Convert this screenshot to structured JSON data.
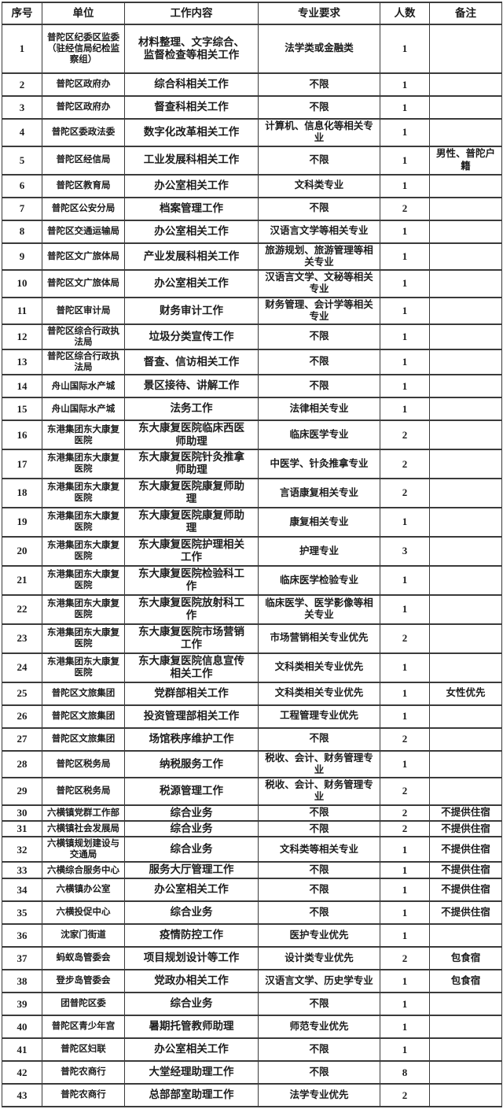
{
  "table": {
    "headers": {
      "no": "序号",
      "unit": "单位",
      "work": "工作内容",
      "req": "专业要求",
      "count": "人数",
      "note": "备注"
    },
    "rows": [
      {
        "no": "1",
        "unit": "普陀区纪委区监委（驻经信局纪检监察组）",
        "work": "材料整理、文字综合、监督检查等相关工作",
        "req": "法学类或金融类",
        "count": "1",
        "note": ""
      },
      {
        "no": "2",
        "unit": "普陀区政府办",
        "work": "综合科相关工作",
        "req": "不限",
        "count": "1",
        "note": ""
      },
      {
        "no": "3",
        "unit": "普陀区政府办",
        "work": "督查科相关工作",
        "req": "不限",
        "count": "1",
        "note": ""
      },
      {
        "no": "4",
        "unit": "普陀区委政法委",
        "work": "数字化改革相关工作",
        "req": "计算机、信息化等相关专业",
        "count": "1",
        "note": ""
      },
      {
        "no": "5",
        "unit": "普陀区经信局",
        "work": "工业发展科相关工作",
        "req": "不限",
        "count": "1",
        "note": "男性、普陀户籍"
      },
      {
        "no": "6",
        "unit": "普陀区教育局",
        "work": "办公室相关工作",
        "req": "文科类专业",
        "count": "1",
        "note": ""
      },
      {
        "no": "7",
        "unit": "普陀区公安分局",
        "work": "档案管理工作",
        "req": "不限",
        "count": "2",
        "note": ""
      },
      {
        "no": "8",
        "unit": "普陀区交通运输局",
        "work": "办公室相关工作",
        "req": "汉语言文学等相关专业",
        "count": "1",
        "note": ""
      },
      {
        "no": "9",
        "unit": "普陀区文广旅体局",
        "work": "产业发展科相关工作",
        "req": "旅游规划、旅游管理等相关专业",
        "count": "1",
        "note": ""
      },
      {
        "no": "10",
        "unit": "普陀区文广旅体局",
        "work": "办公室相关工作",
        "req": "汉语言文学、文秘等相关专业",
        "count": "1",
        "note": ""
      },
      {
        "no": "11",
        "unit": "普陀区审计局",
        "work": "财务审计工作",
        "req": "财务管理、会计学等相关专业",
        "count": "1",
        "note": ""
      },
      {
        "no": "12",
        "unit": "普陀区综合行政执法局",
        "work": "垃圾分类宣传工作",
        "req": "不限",
        "count": "1",
        "note": ""
      },
      {
        "no": "13",
        "unit": "普陀区综合行政执法局",
        "work": "督查、信访相关工作",
        "req": "不限",
        "count": "1",
        "note": ""
      },
      {
        "no": "14",
        "unit": "舟山国际水产城",
        "work": "景区接待、讲解工作",
        "req": "不限",
        "count": "1",
        "note": ""
      },
      {
        "no": "15",
        "unit": "舟山国际水产城",
        "work": "法务工作",
        "req": "法律相关专业",
        "count": "1",
        "note": ""
      },
      {
        "no": "16",
        "unit": "东港集团东大康复医院",
        "work": "东大康复医院临床西医师助理",
        "req": "临床医学专业",
        "count": "2",
        "note": ""
      },
      {
        "no": "17",
        "unit": "东港集团东大康复医院",
        "work": "东大康复医院针灸推拿师助理",
        "req": "中医学、针灸推拿专业",
        "count": "2",
        "note": ""
      },
      {
        "no": "18",
        "unit": "东港集团东大康复医院",
        "work": "东大康复医院康复师助理",
        "req": "言语康复相关专业",
        "count": "2",
        "note": ""
      },
      {
        "no": "19",
        "unit": "东港集团东大康复医院",
        "work": "东大康复医院康复师助理",
        "req": "康复相关专业",
        "count": "1",
        "note": ""
      },
      {
        "no": "20",
        "unit": "东港集团东大康复医院",
        "work": "东大康复医院护理相关工作",
        "req": "护理专业",
        "count": "3",
        "note": ""
      },
      {
        "no": "21",
        "unit": "东港集团东大康复医院",
        "work": "东大康复医院检验科工作",
        "req": "临床医学检验专业",
        "count": "1",
        "note": ""
      },
      {
        "no": "22",
        "unit": "东港集团东大康复医院",
        "work": "东大康复医院放射科工作",
        "req": "临床医学、医学影像等相关专业",
        "count": "1",
        "note": ""
      },
      {
        "no": "23",
        "unit": "东港集团东大康复医院",
        "work": "东大康复医院市场营销工作",
        "req": "市场营销相关专业优先",
        "count": "2",
        "note": ""
      },
      {
        "no": "24",
        "unit": "东港集团东大康复医院",
        "work": "东大康复医院信息宣传相关工作",
        "req": "文科类相关专业优先",
        "count": "1",
        "note": ""
      },
      {
        "no": "25",
        "unit": "普陀区文旅集团",
        "work": "党群部相关工作",
        "req": "文科类相关专业优先",
        "count": "1",
        "note": "女性优先"
      },
      {
        "no": "26",
        "unit": "普陀区文旅集团",
        "work": "投资管理部相关工作",
        "req": "工程管理专业优先",
        "count": "1",
        "note": ""
      },
      {
        "no": "27",
        "unit": "普陀区文旅集团",
        "work": "场馆秩序维护工作",
        "req": "不限",
        "count": "2",
        "note": ""
      },
      {
        "no": "28",
        "unit": "普陀区税务局",
        "work": "纳税服务工作",
        "req": "税收、会计、财务管理专业",
        "count": "1",
        "note": ""
      },
      {
        "no": "29",
        "unit": "普陀区税务局",
        "work": "税源管理工作",
        "req": "税收、会计、财务管理专业",
        "count": "2",
        "note": ""
      },
      {
        "no": "30",
        "unit": "六横镇党群工作部",
        "work": "综合业务",
        "req": "不限",
        "count": "2",
        "note": "不提供住宿"
      },
      {
        "no": "31",
        "unit": "六横镇社会发展局",
        "work": "综合业务",
        "req": "不限",
        "count": "2",
        "note": "不提供住宿"
      },
      {
        "no": "32",
        "unit": "六横镇规划建设与交通局",
        "work": "综合业务",
        "req": "文科类等相关专业",
        "count": "1",
        "note": "不提供住宿"
      },
      {
        "no": "33",
        "unit": "六横综合服务中心",
        "work": "服务大厅管理工作",
        "req": "不限",
        "count": "1",
        "note": "不提供住宿"
      },
      {
        "no": "34",
        "unit": "六横镇办公室",
        "work": "办公室相关工作",
        "req": "不限",
        "count": "1",
        "note": "不提供住宿"
      },
      {
        "no": "35",
        "unit": "六横投促中心",
        "work": "综合业务",
        "req": "不限",
        "count": "1",
        "note": "不提供住宿"
      },
      {
        "no": "36",
        "unit": "沈家门街道",
        "work": "疫情防控工作",
        "req": "医护专业优先",
        "count": "1",
        "note": ""
      },
      {
        "no": "37",
        "unit": "蚂蚁岛管委会",
        "work": "项目规划设计等工作",
        "req": "设计类专业优先",
        "count": "2",
        "note": "包食宿"
      },
      {
        "no": "38",
        "unit": "登步岛管委会",
        "work": "党政办相关工作",
        "req": "汉语言文学、历史学专业",
        "count": "1",
        "note": "包食宿"
      },
      {
        "no": "39",
        "unit": "团普陀区委",
        "work": "综合业务",
        "req": "不限",
        "count": "1",
        "note": ""
      },
      {
        "no": "40",
        "unit": "普陀区青少年宫",
        "work": "暑期托管教师助理",
        "req": "师范专业优先",
        "count": "1",
        "note": ""
      },
      {
        "no": "41",
        "unit": "普陀区妇联",
        "work": "办公室相关工作",
        "req": "不限",
        "count": "1",
        "note": ""
      },
      {
        "no": "42",
        "unit": "普陀农商行",
        "work": "大堂经理助理工作",
        "req": "不限",
        "count": "8",
        "note": ""
      },
      {
        "no": "43",
        "unit": "普陀农商行",
        "work": "总部部室助理工作",
        "req": "法学专业优先",
        "count": "2",
        "note": ""
      }
    ]
  }
}
